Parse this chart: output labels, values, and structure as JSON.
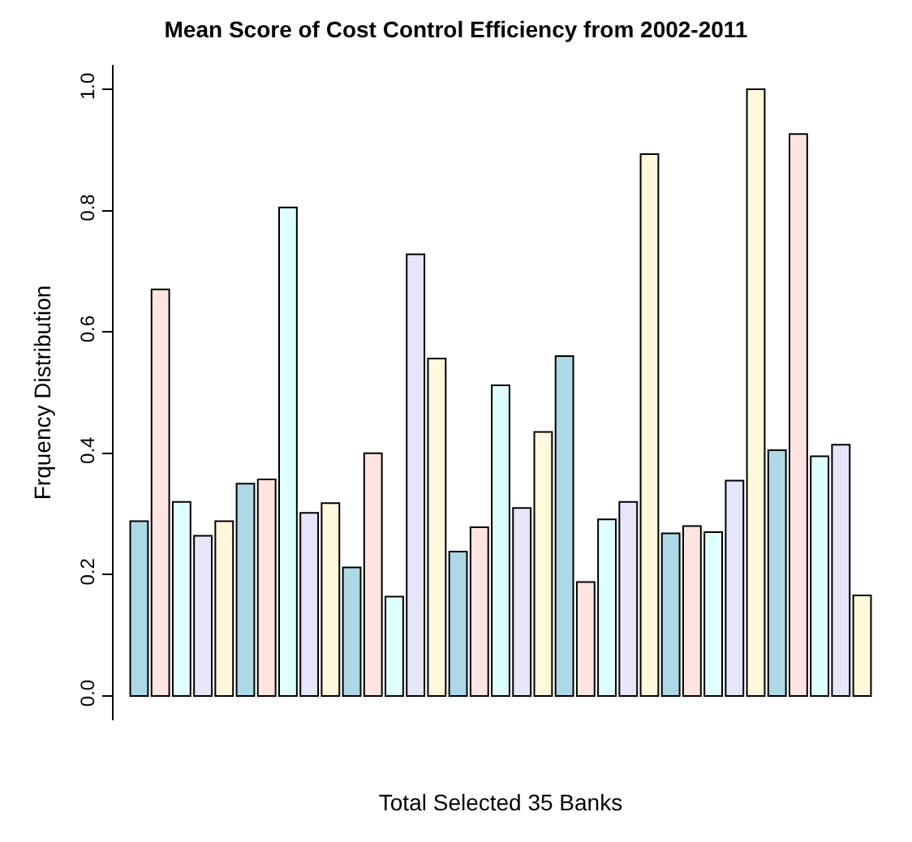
{
  "chart_data": {
    "type": "bar",
    "title": "Mean Score of Cost Control Efficiency from 2002-2011",
    "xlabel": "Total Selected 35 Banks",
    "ylabel": "Frquency Distribution",
    "categories": [
      null,
      null,
      null,
      null,
      null,
      null,
      null,
      null,
      null,
      null,
      null,
      null,
      null,
      null,
      null,
      null,
      null,
      null,
      null,
      null,
      null,
      null,
      null,
      null,
      null,
      null,
      null,
      null,
      null,
      null,
      null,
      null,
      null,
      null,
      null
    ],
    "values": [
      0.288,
      0.67,
      0.32,
      0.264,
      0.288,
      0.35,
      0.357,
      0.805,
      0.302,
      0.318,
      0.212,
      0.4,
      0.164,
      0.728,
      0.556,
      0.238,
      0.278,
      0.512,
      0.31,
      0.435,
      0.56,
      0.188,
      0.291,
      0.32,
      0.893,
      0.268,
      0.28,
      0.27,
      0.355,
      1.0,
      0.405,
      0.926,
      0.395,
      0.414,
      0.166
    ],
    "colors": [
      "#add8e6",
      "#ffe4e1",
      "#e0ffff",
      "#e6e6fa",
      "#fff8dc",
      "#add8e6",
      "#ffe4e1",
      "#e0ffff",
      "#e6e6fa",
      "#fff8dc",
      "#add8e6",
      "#ffe4e1",
      "#e0ffff",
      "#e6e6fa",
      "#fff8dc",
      "#add8e6",
      "#ffe4e1",
      "#e0ffff",
      "#e6e6fa",
      "#fff8dc",
      "#add8e6",
      "#ffe4e1",
      "#e0ffff",
      "#e6e6fa",
      "#fff8dc",
      "#add8e6",
      "#ffe4e1",
      "#e0ffff",
      "#e6e6fa",
      "#fff8dc",
      "#add8e6",
      "#ffe4e1",
      "#e0ffff",
      "#e6e6fa",
      "#fff8dc"
    ],
    "ylim": [
      -0.04,
      1.04
    ],
    "yticks": [
      {
        "value": 0,
        "label": "0.0"
      },
      {
        "value": 0.2,
        "label": "0.2"
      },
      {
        "value": 0.4,
        "label": "0.4"
      },
      {
        "value": 0.6,
        "label": "0.6"
      },
      {
        "value": 0.8,
        "label": "0.8"
      },
      {
        "value": 1.0,
        "label": "1.0"
      }
    ],
    "tick_labels": "y"
  }
}
